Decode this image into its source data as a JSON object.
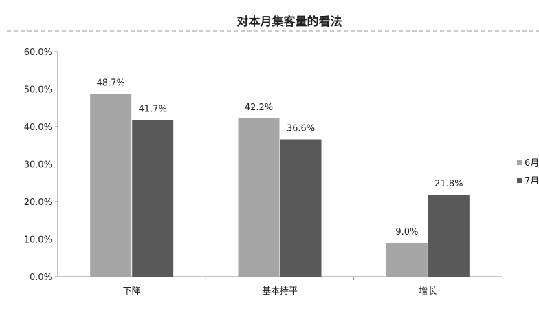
{
  "chart_data": {
    "type": "bar",
    "title": "对本月集客量的看法",
    "categories": [
      "下降",
      "基本持平",
      "增长"
    ],
    "series": [
      {
        "name": "6月",
        "values": [
          48.7,
          42.2,
          9.0
        ],
        "color": "#a6a6a6"
      },
      {
        "name": "7月",
        "values": [
          41.7,
          36.6,
          21.8
        ],
        "color": "#595959"
      }
    ],
    "data_labels": [
      [
        "48.7%",
        "42.2%",
        "9.0%"
      ],
      [
        "41.7%",
        "36.6%",
        "21.8%"
      ]
    ],
    "yticks": [
      "0.0%",
      "10.0%",
      "20.0%",
      "30.0%",
      "40.0%",
      "50.0%",
      "60.0%"
    ],
    "ylim": [
      0,
      60
    ],
    "grid": false,
    "legend": "right"
  }
}
